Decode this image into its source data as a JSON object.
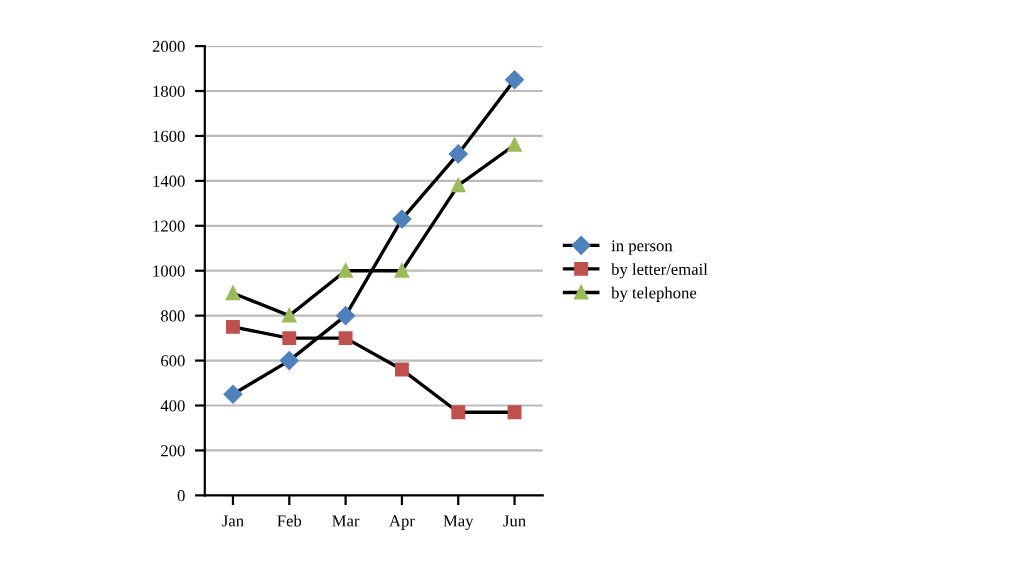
{
  "chart_data": {
    "type": "line",
    "categories": [
      "Jan",
      "Feb",
      "Mar",
      "Apr",
      "May",
      "Jun"
    ],
    "series": [
      {
        "name": "in person",
        "color": "#4f81bd",
        "marker": "diamond",
        "values": [
          450,
          600,
          800,
          1230,
          1520,
          1850
        ]
      },
      {
        "name": "by letter/email",
        "color": "#c0504d",
        "marker": "square",
        "values": [
          750,
          700,
          700,
          560,
          370,
          370
        ]
      },
      {
        "name": "by telephone",
        "color": "#9bbb59",
        "marker": "triangle",
        "values": [
          900,
          800,
          1000,
          1000,
          1380,
          1560
        ]
      }
    ],
    "ylim": [
      0,
      2000
    ],
    "yticks": [
      0,
      200,
      400,
      600,
      800,
      1000,
      1200,
      1400,
      1600,
      1800,
      2000
    ],
    "grid": "y",
    "legend": "right",
    "line_style": "solid"
  }
}
